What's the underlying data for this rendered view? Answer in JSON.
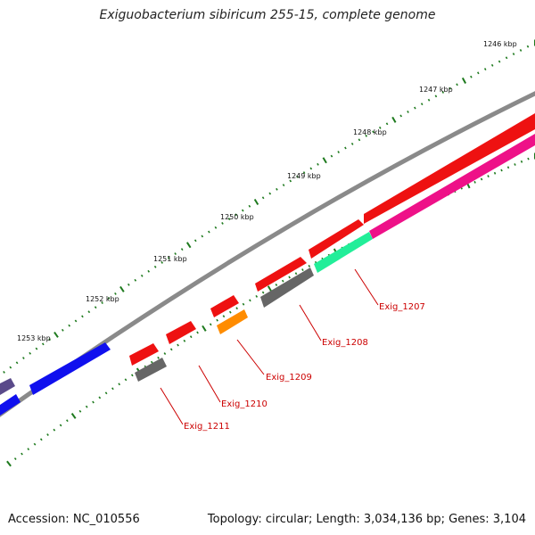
{
  "title": "Exiguobacterium sibiricum 255-15, complete genome",
  "footer": {
    "accession": "Accession: NC_010556",
    "summary": "Topology: circular; Length: 3,034,136 bp; Genes: 3,104"
  },
  "ruler_labels": [
    "1246 kbp",
    "1247 kbp",
    "1248 kbp",
    "1249 kbp",
    "1250 kbp",
    "1251 kbp",
    "1252 kbp",
    "1253 kbp"
  ],
  "gene_labels": [
    "Exig_1207",
    "Exig_1208",
    "Exig_1209",
    "Exig_1210",
    "Exig_1211"
  ],
  "colors": {
    "backbone": "#8a8a8a",
    "ruler_ticks": "#1e7a1e",
    "gene_labels": "#cc0000",
    "cds_forward": "#ee1111",
    "cds_reverse_gray": "#666666",
    "cds_blue": "#1010ee",
    "cds_purple": "#5a4a8a",
    "cds_orange": "#ff8c00",
    "cds_green": "#22ee99",
    "cds_pink": "#ee1188"
  }
}
